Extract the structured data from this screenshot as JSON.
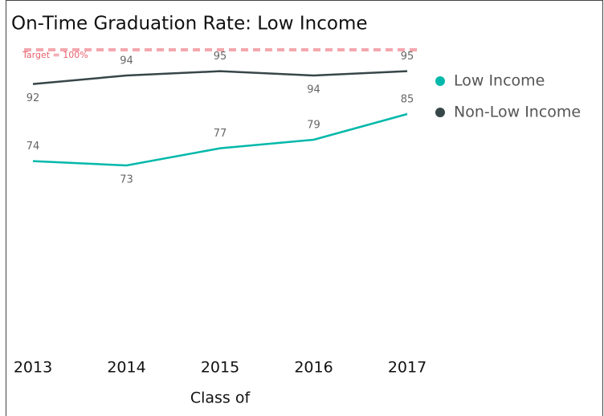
{
  "chart_data": {
    "type": "line",
    "title": "On-Time Graduation Rate: Low Income",
    "x_label": "Class of",
    "categories": [
      "2013",
      "2014",
      "2015",
      "2016",
      "2017"
    ],
    "series": [
      {
        "name": "Low Income",
        "color": "#01b8aa",
        "values": [
          74,
          73,
          77,
          79,
          85
        ]
      },
      {
        "name": "Non-Low Income",
        "color": "#374649",
        "values": [
          92,
          94,
          95,
          94,
          95
        ]
      }
    ],
    "ylim": [
      31,
      100
    ],
    "target": {
      "value": 100,
      "label": "Target = 100%",
      "color": "#f4a7ae"
    },
    "legend": "right"
  }
}
